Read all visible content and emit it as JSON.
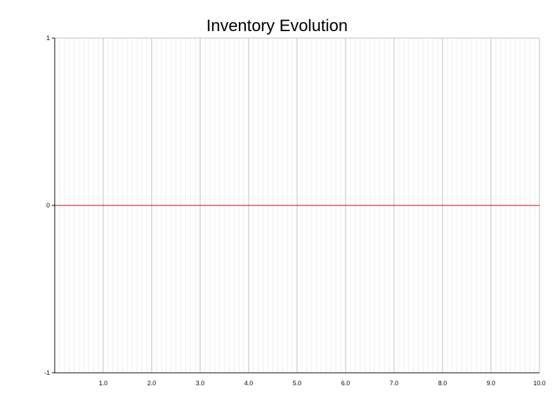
{
  "chart_data": {
    "type": "line",
    "title": "Inventory Evolution",
    "xlabel": "",
    "ylabel": "",
    "xlim": [
      0,
      10
    ],
    "ylim": [
      -1,
      1
    ],
    "x_ticks": [
      1,
      2,
      3,
      4,
      5,
      6,
      7,
      8,
      9,
      10
    ],
    "x_tick_labels": [
      "1.0",
      "2.0",
      "3.0",
      "4.0",
      "5.0",
      "6.0",
      "7.0",
      "8.0",
      "9.0",
      "10.0"
    ],
    "y_ticks": [
      1,
      0,
      -1
    ],
    "y_tick_labels": [
      "1",
      "0",
      "-1"
    ],
    "x_minor_step": 0.1,
    "grid": true,
    "legend": "none",
    "series": [
      {
        "color": "#cc0000",
        "x": [
          0,
          10
        ],
        "y": [
          0,
          0
        ]
      }
    ]
  }
}
